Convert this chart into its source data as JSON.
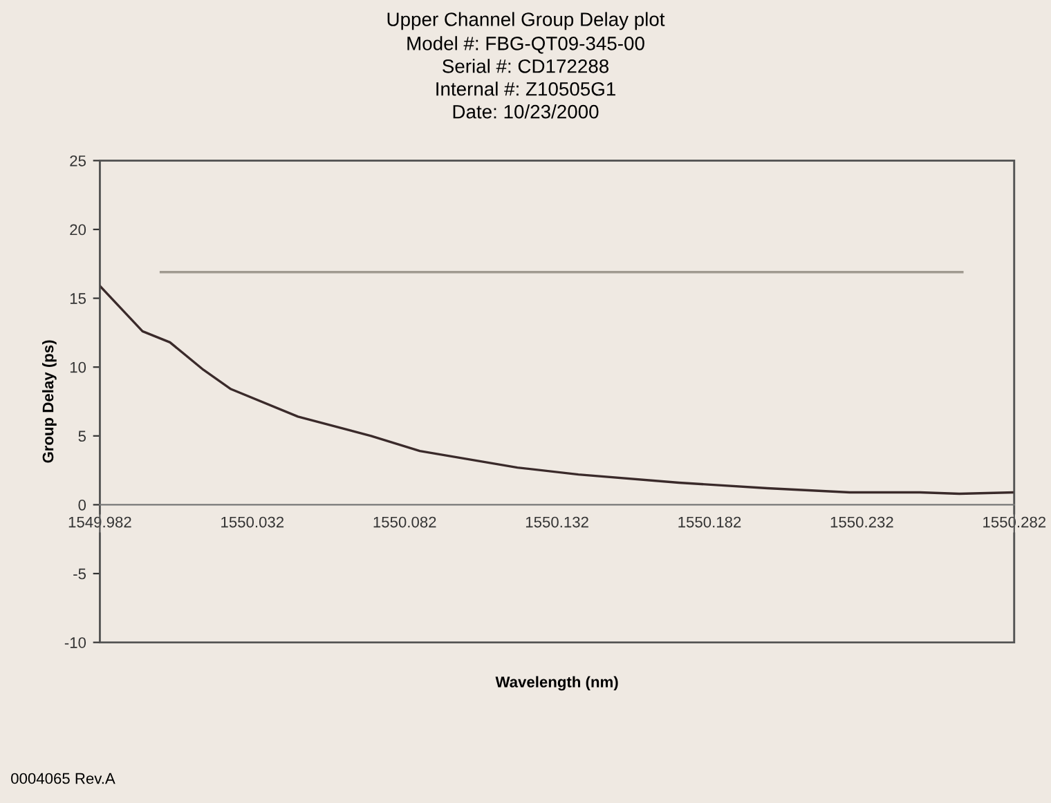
{
  "chart_data": {
    "type": "line",
    "title": "Upper Channel Group Delay plot",
    "subtitle": "Model #: FBG-QT09-345-00\nSerial #: CD172288\nInternal #: Z10505G1\nDate: 10/23/2000",
    "xlabel": "Wavelength (nm)",
    "ylabel": "Group Delay (ps)",
    "series": [
      {
        "color": "#3a2a2a",
        "x": [
          1549.982,
          1549.996,
          1550.005,
          1550.016,
          1550.025,
          1550.047,
          1550.071,
          1550.087,
          1550.119,
          1550.139,
          1550.172,
          1550.201,
          1550.228,
          1550.251,
          1550.264,
          1550.282
        ],
        "values": [
          15.9,
          12.6,
          11.8,
          9.8,
          8.4,
          6.4,
          5.0,
          3.9,
          2.7,
          2.2,
          1.6,
          1.2,
          0.9,
          0.9,
          0.8,
          0.9
        ]
      },
      {
        "color": "#a09a90",
        "x": [
          1550.002,
          1550.265
        ],
        "values": [
          16.9,
          16.9
        ]
      }
    ],
    "xlim": [
      1549.982,
      1550.282
    ],
    "xticks": [
      1549.982,
      1550.032,
      1550.082,
      1550.132,
      1550.182,
      1550.232,
      1550.282
    ],
    "ylim": [
      -10,
      25
    ],
    "yticks": [
      -10,
      -5,
      0,
      5,
      10,
      15,
      20,
      25
    ],
    "grid": false,
    "legend": false,
    "annotations": [
      "0004065 Rev.A"
    ]
  }
}
